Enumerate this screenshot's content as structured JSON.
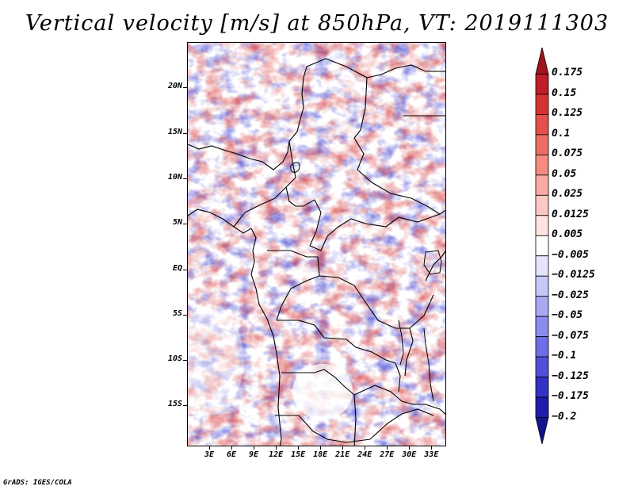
{
  "title": "Vertical velocity [m/s] at 850hPa, VT: 2019111303",
  "credit": "GrADS: IGES/COLA",
  "map": {
    "lon_range": [
      0,
      35
    ],
    "lat_range": [
      -19.5,
      25
    ],
    "lat_labels": [
      {
        "lat": 20,
        "label": "20N"
      },
      {
        "lat": 15,
        "label": "15N"
      },
      {
        "lat": 10,
        "label": "10N"
      },
      {
        "lat": 5,
        "label": "5N"
      },
      {
        "lat": 0,
        "label": "EQ"
      },
      {
        "lat": -5,
        "label": "5S"
      },
      {
        "lat": -10,
        "label": "10S"
      },
      {
        "lat": -15,
        "label": "15S"
      }
    ],
    "lon_labels": [
      {
        "lon": 3,
        "label": "3E"
      },
      {
        "lon": 6,
        "label": "6E"
      },
      {
        "lon": 9,
        "label": "9E"
      },
      {
        "lon": 12,
        "label": "12E"
      },
      {
        "lon": 15,
        "label": "15E"
      },
      {
        "lon": 18,
        "label": "18E"
      },
      {
        "lon": 21,
        "label": "21E"
      },
      {
        "lon": 24,
        "label": "24E"
      },
      {
        "lon": 27,
        "label": "27E"
      },
      {
        "lon": 30,
        "label": "30E"
      },
      {
        "lon": 33,
        "label": "33E"
      }
    ]
  },
  "colorbar": {
    "levels": [
      "0.175",
      "0.15",
      "0.125",
      "0.1",
      "0.075",
      "0.05",
      "0.025",
      "0.0125",
      "0.005",
      "−0.005",
      "−0.0125",
      "−0.025",
      "−0.05",
      "−0.075",
      "−0.1",
      "−0.125",
      "−0.175",
      "−0.2"
    ],
    "colors": [
      "#a0141e",
      "#be1e28",
      "#d73232",
      "#e4504b",
      "#ed6e66",
      "#f48c82",
      "#f8aaa3",
      "#fbc8c3",
      "#fde4e1",
      "#ffffff",
      "#e4e4fc",
      "#c8c8f8",
      "#a9a9f3",
      "#8c8ced",
      "#6e6ee6",
      "#5050d8",
      "#3232c4",
      "#1e1eaa",
      "#14148c"
    ]
  }
}
